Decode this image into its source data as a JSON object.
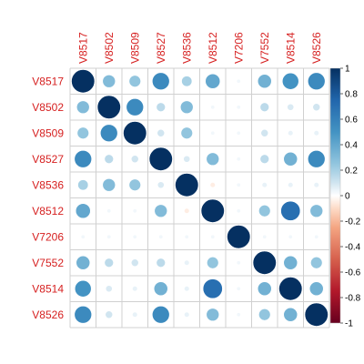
{
  "chart_data": {
    "type": "heatmap",
    "subtype": "correlation-circles",
    "variables": [
      "V8517",
      "V8502",
      "V8509",
      "V8527",
      "V8536",
      "V8512",
      "V7206",
      "V7552",
      "V8514",
      "V8526"
    ],
    "matrix": [
      [
        1.0,
        0.3,
        0.25,
        0.55,
        0.2,
        0.4,
        0.03,
        0.35,
        0.5,
        0.55
      ],
      [
        0.3,
        1.0,
        0.55,
        0.15,
        0.3,
        0.03,
        0.03,
        0.15,
        0.08,
        0.1
      ],
      [
        0.25,
        0.55,
        1.0,
        0.1,
        0.25,
        0.03,
        0.03,
        0.1,
        0.05,
        0.05
      ],
      [
        0.55,
        0.15,
        0.1,
        1.0,
        0.08,
        0.3,
        0.03,
        0.15,
        0.35,
        0.55
      ],
      [
        0.2,
        0.3,
        0.25,
        0.08,
        1.0,
        -0.05,
        0.03,
        0.05,
        0.05,
        0.05
      ],
      [
        0.4,
        0.03,
        0.03,
        0.3,
        -0.05,
        1.0,
        0.03,
        0.25,
        0.7,
        0.3
      ],
      [
        0.03,
        0.03,
        0.03,
        0.03,
        0.03,
        0.03,
        1.0,
        0.03,
        0.03,
        0.03
      ],
      [
        0.35,
        0.15,
        0.1,
        0.15,
        0.05,
        0.25,
        0.03,
        1.0,
        0.35,
        0.25
      ],
      [
        0.5,
        0.08,
        0.05,
        0.35,
        0.05,
        0.7,
        0.03,
        0.35,
        1.0,
        0.35
      ],
      [
        0.55,
        0.1,
        0.05,
        0.55,
        0.05,
        0.3,
        0.03,
        0.25,
        0.35,
        1.0
      ]
    ],
    "colorbar": {
      "range": [
        -1,
        1
      ],
      "ticks": [
        "1",
        "0.8",
        "0.6",
        "0.4",
        "0.2",
        "0",
        "-0.2",
        "-0.4",
        "-0.6",
        "-0.8",
        "-1"
      ],
      "negative_color": "#67001f",
      "zero_color": "#ffffff",
      "positive_color": "#053061"
    },
    "label_color": "#d62020",
    "grid": true
  }
}
